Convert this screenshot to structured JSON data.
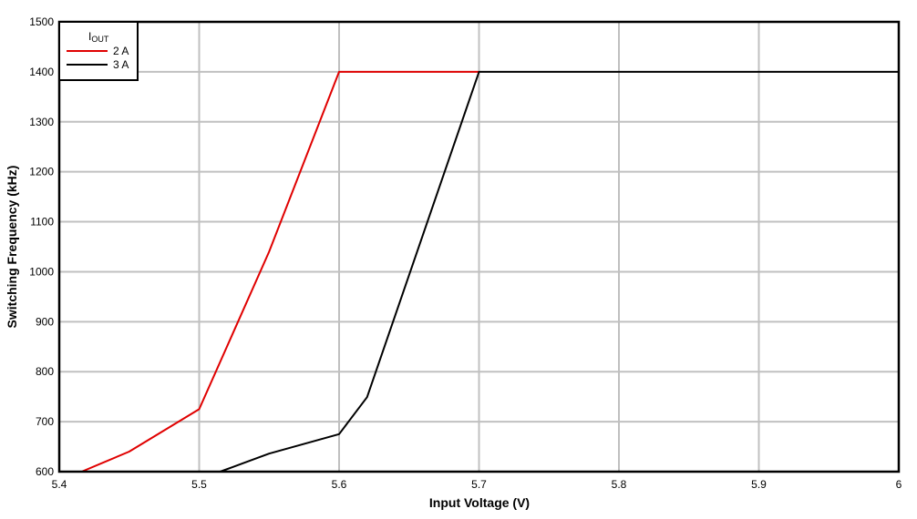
{
  "chart_data": {
    "type": "line",
    "title": "",
    "xlabel": "Input Voltage (V)",
    "ylabel": "Switching Frequency (kHz)",
    "xlim": [
      5.4,
      6.0
    ],
    "ylim": [
      600,
      1500
    ],
    "x_ticks": [
      "5.4",
      "5.5",
      "5.6",
      "5.7",
      "5.8",
      "5.9",
      "6"
    ],
    "y_ticks": [
      "600",
      "700",
      "800",
      "900",
      "1000",
      "1100",
      "1200",
      "1300",
      "1400",
      "1500"
    ],
    "grid": true,
    "legend": {
      "title_main": "I",
      "title_sub": "OUT",
      "position": "top-left"
    },
    "series": [
      {
        "name": "2 A",
        "color": "#e00000",
        "x": [
          5.416,
          5.45,
          5.5,
          5.55,
          5.6,
          5.7
        ],
        "y": [
          600,
          640,
          725,
          1040,
          1400,
          1400
        ]
      },
      {
        "name": "3 A",
        "color": "#000000",
        "x": [
          5.515,
          5.55,
          5.6,
          5.62,
          5.7,
          6.0
        ],
        "y": [
          600,
          636,
          675,
          749,
          1400,
          1400
        ]
      }
    ]
  }
}
